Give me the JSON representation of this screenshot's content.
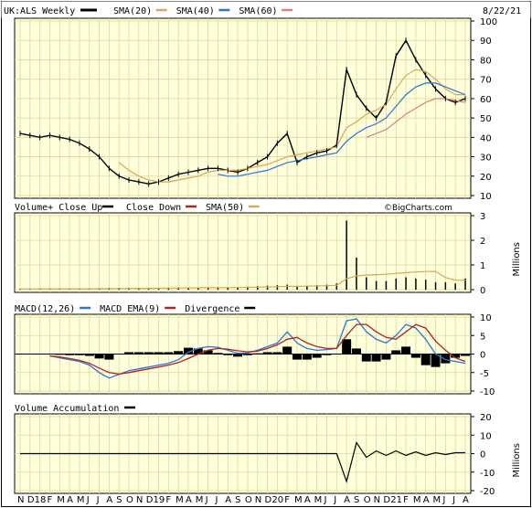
{
  "chart_data": [
    {
      "type": "line",
      "panel": "price",
      "symbol_label": "UK:ALS Weekly",
      "date": "8/22/21",
      "legend": [
        {
          "label": "SMA(20)",
          "color": "#d9a65a"
        },
        {
          "label": "SMA(40)",
          "color": "#2a75d6"
        },
        {
          "label": "SMA(60)",
          "color": "#d98080"
        }
      ],
      "price_line_color": "#000000",
      "ylim": [
        10,
        100
      ],
      "yticks": [
        10,
        20,
        30,
        40,
        50,
        60,
        70,
        80,
        90,
        100
      ],
      "x": [
        "N",
        "D",
        "18",
        "F",
        "M",
        "A",
        "M",
        "J",
        "J",
        "A",
        "S",
        "O",
        "N",
        "D",
        "19",
        "F",
        "M",
        "A",
        "M",
        "J",
        "J",
        "A",
        "S",
        "O",
        "N",
        "D",
        "20",
        "F",
        "M",
        "A",
        "M",
        "J",
        "J",
        "A",
        "S",
        "O",
        "N",
        "D",
        "21",
        "F",
        "M",
        "A",
        "M",
        "J",
        "J",
        "A"
      ],
      "series": [
        {
          "name": "UK:ALS Weekly",
          "values": [
            42,
            41,
            40,
            41,
            40,
            39,
            37,
            34,
            30,
            24,
            20,
            18,
            17,
            16,
            17,
            19,
            21,
            22,
            23,
            24,
            24,
            23,
            22,
            24,
            27,
            30,
            37,
            42,
            27,
            30,
            32,
            33,
            36,
            75,
            62,
            55,
            50,
            58,
            82,
            90,
            80,
            72,
            65,
            60,
            58,
            60
          ]
        },
        {
          "name": "SMA(20)",
          "values": [
            null,
            null,
            null,
            null,
            null,
            null,
            null,
            null,
            null,
            null,
            27,
            23,
            20,
            18,
            17,
            17,
            18,
            19,
            20,
            22,
            23,
            23,
            23,
            24,
            25,
            26,
            28,
            30,
            31,
            32,
            33,
            34,
            35,
            45,
            48,
            52,
            54,
            57,
            65,
            72,
            75,
            74,
            70,
            65,
            62,
            62
          ]
        },
        {
          "name": "SMA(40)",
          "values": [
            null,
            null,
            null,
            null,
            null,
            null,
            null,
            null,
            null,
            null,
            null,
            null,
            null,
            null,
            null,
            null,
            null,
            null,
            null,
            null,
            21,
            20,
            20,
            21,
            22,
            23,
            25,
            27,
            28,
            29,
            30,
            31,
            32,
            38,
            42,
            45,
            47,
            50,
            56,
            62,
            66,
            68,
            68,
            66,
            64,
            62
          ]
        },
        {
          "name": "SMA(60)",
          "values": [
            null,
            null,
            null,
            null,
            null,
            null,
            null,
            null,
            null,
            null,
            null,
            null,
            null,
            null,
            null,
            null,
            null,
            null,
            null,
            null,
            null,
            null,
            null,
            null,
            null,
            null,
            null,
            null,
            null,
            null,
            null,
            null,
            null,
            null,
            null,
            40,
            42,
            44,
            48,
            52,
            55,
            58,
            60,
            60,
            59,
            58
          ]
        }
      ]
    },
    {
      "type": "bar",
      "panel": "volume",
      "title": "Volume+ Close Up",
      "legend": [
        {
          "label": "Close Up",
          "color": "#000000"
        },
        {
          "label": "Close Down",
          "color": "#b22222"
        },
        {
          "label": "SMA(50)",
          "color": "#d9a65a"
        }
      ],
      "ylabel": "Millions",
      "ylim": [
        0,
        3
      ],
      "yticks": [
        0,
        1,
        2,
        3
      ],
      "watermark": "©BigCharts.com",
      "values": [
        0.03,
        0.03,
        0.03,
        0.04,
        0.03,
        0.03,
        0.04,
        0.05,
        0.06,
        0.07,
        0.07,
        0.06,
        0.06,
        0.06,
        0.07,
        0.08,
        0.08,
        0.09,
        0.09,
        0.1,
        0.1,
        0.1,
        0.1,
        0.12,
        0.14,
        0.16,
        0.18,
        0.2,
        0.14,
        0.16,
        0.18,
        0.2,
        0.25,
        2.8,
        1.3,
        0.5,
        0.35,
        0.35,
        0.45,
        0.5,
        0.45,
        0.4,
        0.3,
        0.3,
        0.25,
        0.45
      ]
    },
    {
      "type": "line",
      "panel": "macd",
      "legend": [
        {
          "label": "MACD(12,26)",
          "color": "#2a75d6"
        },
        {
          "label": "MACD EMA(9)",
          "color": "#b22222"
        },
        {
          "label": "Divergence",
          "color": "#000000"
        }
      ],
      "ylim": [
        -10,
        10
      ],
      "yticks": [
        -10,
        -5,
        0,
        5,
        10
      ],
      "series": [
        {
          "name": "MACD(12,26)",
          "values": [
            null,
            null,
            null,
            -0.5,
            -1,
            -1.5,
            -2,
            -3,
            -5,
            -6.5,
            -5.5,
            -4.5,
            -4,
            -3.5,
            -3,
            -2.5,
            -1.5,
            0.5,
            1.5,
            2,
            1.8,
            1,
            0.2,
            0.3,
            1,
            2,
            3,
            6,
            3,
            1.5,
            1,
            1.2,
            1.5,
            9,
            9.5,
            6,
            4,
            3,
            5,
            8,
            7,
            4,
            0,
            -1.5,
            -2,
            -2.5
          ]
        },
        {
          "name": "MACD EMA(9)",
          "values": [
            null,
            null,
            null,
            -0.5,
            -0.8,
            -1.2,
            -1.7,
            -2.5,
            -3.8,
            -5,
            -5.4,
            -5,
            -4.5,
            -4,
            -3.5,
            -3,
            -2.3,
            -1.2,
            0,
            1,
            1.5,
            1.3,
            0.9,
            0.6,
            0.8,
            1.5,
            2.5,
            4,
            4.5,
            3,
            2,
            1.5,
            1.5,
            5,
            8,
            8,
            6,
            4.5,
            4,
            6,
            8,
            7,
            3.5,
            1,
            -1,
            -2
          ]
        },
        {
          "name": "Divergence",
          "values": [
            null,
            null,
            null,
            0,
            -0.2,
            -0.3,
            -0.3,
            -0.5,
            -1.2,
            -1.5,
            -0.1,
            0.5,
            0.5,
            0.5,
            0.5,
            0.5,
            0.8,
            1.7,
            1.5,
            1,
            0.3,
            -0.3,
            -0.7,
            -0.3,
            0.2,
            0.5,
            0.5,
            2,
            -1.5,
            -1.5,
            -1,
            -0.3,
            0,
            4,
            1.5,
            -2,
            -2,
            -1.5,
            1,
            2,
            -1,
            -3,
            -3.5,
            -2.5,
            -1,
            -0.5
          ]
        }
      ]
    },
    {
      "type": "line",
      "panel": "volume_accumulation",
      "title": "Volume Accumulation",
      "legend": [
        {
          "label": "Volume Accumulation",
          "color": "#000000"
        }
      ],
      "ylabel": "Millions",
      "ylim": [
        -20,
        20
      ],
      "yticks": [
        -20,
        -10,
        0,
        10,
        20
      ],
      "values": [
        0,
        0,
        0,
        0,
        0,
        0,
        0,
        0,
        0,
        0,
        0,
        0,
        0,
        0,
        0,
        0,
        0,
        0,
        0,
        0,
        0,
        0,
        0,
        0,
        0,
        0,
        0,
        0,
        0,
        0,
        0,
        0,
        0,
        -15,
        6,
        -2,
        1.5,
        -1,
        1.5,
        -1,
        1,
        -1,
        0.5,
        -0.5,
        0.5,
        0.5
      ]
    }
  ]
}
